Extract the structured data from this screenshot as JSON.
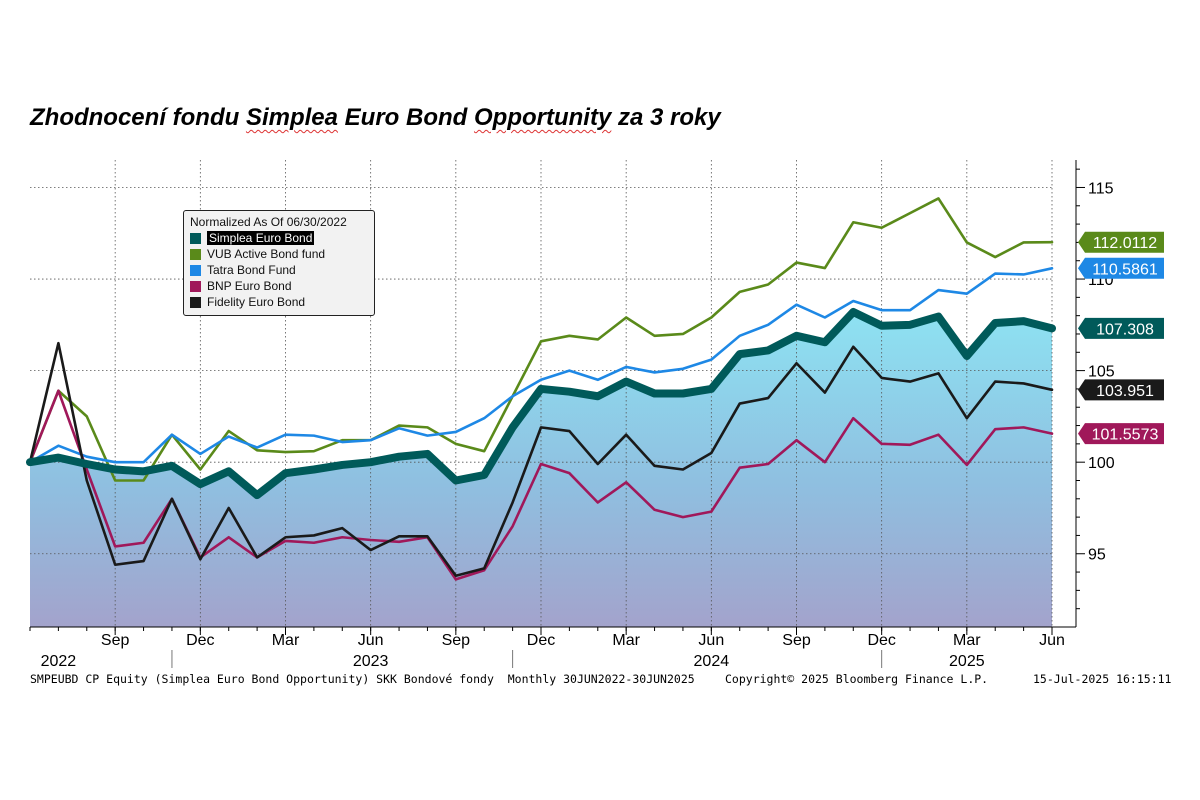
{
  "title": {
    "parts": [
      "Zhodnocení fondu ",
      "Simplea",
      " Euro Bond ",
      "Opportunity",
      " za 3 roky"
    ]
  },
  "footer": {
    "left": "SMPEUBD CP Equity (Simplea Euro Bond Opportunity) SKK Bondové fondy  Monthly 30JUN2022-30JUN2025",
    "center": "Copyright© 2025 Bloomberg Finance L.P.",
    "right": "15-Jul-2025 16:15:11"
  },
  "legend": {
    "header": "Normalized As Of 06/30/2022",
    "placement": "upper-left"
  },
  "chart_data": {
    "type": "line",
    "x": [
      "2022-06",
      "2022-07",
      "2022-08",
      "2022-09",
      "2022-10",
      "2022-11",
      "2022-12",
      "2023-01",
      "2023-02",
      "2023-03",
      "2023-04",
      "2023-05",
      "2023-06",
      "2023-07",
      "2023-08",
      "2023-09",
      "2023-10",
      "2023-11",
      "2023-12",
      "2024-01",
      "2024-02",
      "2024-03",
      "2024-04",
      "2024-05",
      "2024-06",
      "2024-07",
      "2024-08",
      "2024-09",
      "2024-10",
      "2024-11",
      "2024-12",
      "2025-01",
      "2025-02",
      "2025-03",
      "2025-04",
      "2025-05",
      "2025-06"
    ],
    "x_tick_labels": [
      {
        "x": "2022-09",
        "label": "Sep"
      },
      {
        "x": "2022-12",
        "label": "Dec"
      },
      {
        "x": "2023-03",
        "label": "Mar"
      },
      {
        "x": "2023-06",
        "label": "Jun"
      },
      {
        "x": "2023-09",
        "label": "Sep"
      },
      {
        "x": "2023-12",
        "label": "Dec"
      },
      {
        "x": "2024-03",
        "label": "Mar"
      },
      {
        "x": "2024-06",
        "label": "Jun"
      },
      {
        "x": "2024-09",
        "label": "Sep"
      },
      {
        "x": "2024-12",
        "label": "Dec"
      },
      {
        "x": "2025-03",
        "label": "Mar"
      },
      {
        "x": "2025-06",
        "label": "Jun"
      }
    ],
    "x_year_labels": [
      {
        "x": "2022-07",
        "label": "2022"
      },
      {
        "x": "2023-06",
        "label": "2023"
      },
      {
        "x": "2024-06",
        "label": "2024"
      },
      {
        "x": "2025-03",
        "label": "2025"
      }
    ],
    "x_year_separators": [
      "2022-11",
      "2023-11",
      "2024-12"
    ],
    "ylim": [
      91,
      116.5
    ],
    "y_ticks": [
      95,
      100,
      105,
      110,
      115
    ],
    "y_axis_side": "right",
    "grid": true,
    "series": [
      {
        "name": "Simplea Euro Bond",
        "color": "#005a5a",
        "fill": true,
        "label": "107.308",
        "label_color": "#005a5a",
        "values": [
          100,
          100.25,
          99.9,
          99.6,
          99.5,
          99.8,
          98.8,
          99.5,
          98.2,
          99.4,
          99.6,
          99.85,
          100,
          100.3,
          100.45,
          99.0,
          99.3,
          101.9,
          104.0,
          103.85,
          103.6,
          104.4,
          103.75,
          103.75,
          104.0,
          105.9,
          106.1,
          106.9,
          106.55,
          108.2,
          107.45,
          107.5,
          107.95,
          105.8,
          107.6,
          107.7,
          107.308
        ]
      },
      {
        "name": "VUB Active Bond fund",
        "color": "#5a8a1a",
        "label": "112.0112",
        "label_color": "#5a8a1a",
        "values": [
          100,
          103.9,
          102.5,
          99.0,
          99.0,
          101.5,
          99.6,
          101.7,
          100.65,
          100.55,
          100.6,
          101.2,
          101.2,
          102.0,
          101.9,
          101.0,
          100.6,
          103.6,
          106.6,
          106.9,
          106.7,
          107.9,
          106.9,
          107.0,
          107.9,
          109.3,
          109.7,
          110.9,
          110.6,
          113.1,
          112.8,
          113.6,
          114.4,
          112.0,
          111.2,
          112.0,
          112.0112
        ]
      },
      {
        "name": "Tatra Bond Fund",
        "color": "#1e88e5",
        "label": "110.5861",
        "label_color": "#1e88e5",
        "values": [
          100,
          100.9,
          100.3,
          100.0,
          100.0,
          101.5,
          100.45,
          101.4,
          100.8,
          101.5,
          101.45,
          101.1,
          101.2,
          101.85,
          101.45,
          101.65,
          102.4,
          103.6,
          104.5,
          105.0,
          104.5,
          105.2,
          104.9,
          105.1,
          105.6,
          106.9,
          107.5,
          108.6,
          107.9,
          108.8,
          108.3,
          108.3,
          109.4,
          109.2,
          110.3,
          110.25,
          110.5861
        ]
      },
      {
        "name": "BNP Euro Bond",
        "color": "#a0185a",
        "label": "101.5573",
        "label_color": "#a0185a",
        "values": [
          100,
          103.9,
          99.6,
          95.4,
          95.6,
          98.0,
          94.8,
          95.9,
          94.8,
          95.7,
          95.6,
          95.9,
          95.75,
          95.65,
          95.9,
          93.6,
          94.1,
          96.5,
          99.9,
          99.4,
          97.8,
          98.9,
          97.4,
          97.0,
          97.3,
          99.7,
          99.9,
          101.2,
          100.0,
          102.4,
          101.0,
          100.95,
          101.5,
          99.85,
          101.8,
          101.9,
          101.5573
        ]
      },
      {
        "name": "Fidelity Euro Bond",
        "color": "#1a1a1a",
        "label": "103.951",
        "label_color": "#1a1a1a",
        "values": [
          100,
          106.5,
          99.0,
          94.4,
          94.6,
          98.0,
          94.7,
          97.5,
          94.8,
          95.9,
          96.0,
          96.4,
          95.2,
          95.95,
          95.95,
          93.8,
          94.2,
          97.8,
          101.9,
          101.7,
          99.9,
          101.5,
          99.8,
          99.6,
          100.5,
          103.2,
          103.5,
          105.4,
          103.8,
          106.3,
          104.6,
          104.4,
          104.85,
          102.4,
          104.4,
          104.3,
          103.951
        ]
      }
    ]
  }
}
